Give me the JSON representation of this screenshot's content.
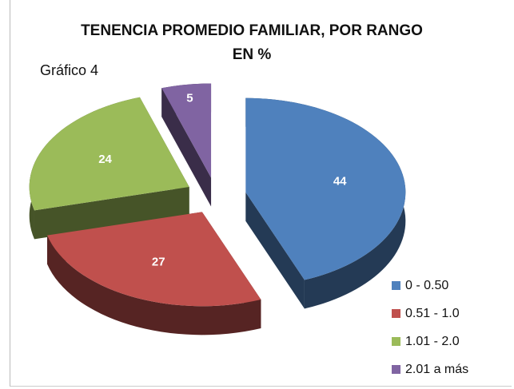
{
  "chart_data": {
    "type": "pie3d",
    "title": "TENENCIA PROMEDIO FAMILIAR, POR RANGO EN %",
    "annotation": "Gráfico 4",
    "categories": [
      "0 - 0.50",
      "0.51 - 1.0",
      "1.01 - 2.0",
      "2.01 a más"
    ],
    "values": [
      44,
      27,
      24,
      5
    ],
    "colors": [
      "#4f81bd",
      "#c0504d",
      "#9bbb59",
      "#8064a2"
    ],
    "exploded": true,
    "legend": "bottom-right"
  }
}
